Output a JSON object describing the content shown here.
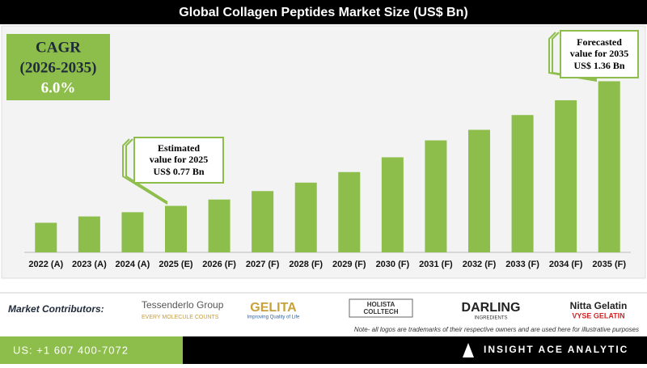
{
  "chart_data": {
    "type": "bar",
    "title": "Global Collagen Peptides Market Size (US$ Bn)",
    "categories": [
      "2022 (A)",
      "2023 (A)",
      "2024 (A)",
      "2025 (E)",
      "2026 (F)",
      "2027 (F)",
      "2028 (F)",
      "2029 (F)",
      "2030 (F)",
      "2031 (F)",
      "2032 (F)",
      "2033 (F)",
      "2034 (F)",
      "2035 (F)"
    ],
    "values": [
      0.69,
      0.72,
      0.74,
      0.77,
      0.8,
      0.84,
      0.88,
      0.93,
      1.0,
      1.08,
      1.13,
      1.2,
      1.27,
      1.36
    ],
    "color": "#8dbd4a",
    "ylim": [
      0.55,
      1.4
    ],
    "cagr": {
      "label": "CAGR",
      "period": "(2026-2035)",
      "value": "6.0%"
    },
    "annotations": [
      {
        "lines": [
          "Estimated",
          "value for 2025",
          "US$ 0.77 Bn"
        ]
      },
      {
        "lines": [
          "Forecasted",
          "value for 2035",
          "US$ 1.36 Bn"
        ]
      }
    ]
  },
  "footer": {
    "contributors_label": "Market Contributors:",
    "logos": [
      [
        "Tessenderlo Group",
        "EVERY MOLECULE COUNTS"
      ],
      [
        "GELITA",
        "Improving Quality of Life"
      ],
      [
        "HOLISTA",
        "COLLTECH"
      ],
      [
        "DARLING",
        "INGREDIENTS"
      ],
      [
        "Nitta Gelatin",
        "VYSE GELATIN"
      ]
    ],
    "note": "Note- all logos are trademarks of their respective owners and are used here for illustrative purposes",
    "phone": "US: +1 607 400-7072",
    "brand": "INSIGHT ACE ANALYTIC"
  }
}
